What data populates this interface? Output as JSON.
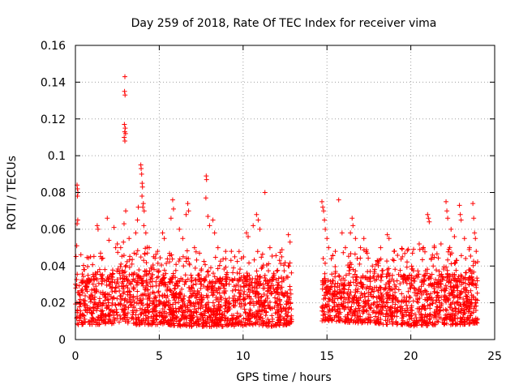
{
  "chart_data": {
    "type": "scatter",
    "title": "Day 259 of 2018, Rate Of TEC Index for receiver vima",
    "xlabel": "GPS time / hours",
    "ylabel": "ROTI / TECUs",
    "xlim": [
      0,
      25
    ],
    "ylim": [
      0,
      0.16
    ],
    "xticks": [
      0,
      5,
      10,
      15,
      20,
      25
    ],
    "yticks": [
      0,
      0.02,
      0.04,
      0.06,
      0.08,
      0.1,
      0.12,
      0.14,
      0.16
    ],
    "xtick_labels": [
      "0",
      "5",
      "10",
      "15",
      "20",
      "25"
    ],
    "ytick_labels": [
      "0",
      "0.02",
      "0.04",
      "0.06",
      "0.08",
      "0.1",
      "0.12",
      "0.14",
      "0.16"
    ],
    "grid": true,
    "marker": "+",
    "color": "#ff0000",
    "data_gap_hours": [
      12.9,
      14.7
    ],
    "series": [
      {
        "name": "vima",
        "points": [
          [
            0.1,
            0.084
          ],
          [
            0.12,
            0.082
          ],
          [
            0.15,
            0.08
          ],
          [
            0.12,
            0.078
          ],
          [
            0.14,
            0.065
          ],
          [
            0.1,
            0.063
          ],
          [
            0.08,
            0.051
          ],
          [
            0.5,
            0.038
          ],
          [
            0.9,
            0.045
          ],
          [
            1.3,
            0.062
          ],
          [
            1.35,
            0.06
          ],
          [
            1.5,
            0.047
          ],
          [
            1.9,
            0.066
          ],
          [
            2.0,
            0.054
          ],
          [
            2.3,
            0.061
          ],
          [
            2.4,
            0.05
          ],
          [
            2.5,
            0.052
          ],
          [
            2.7,
            0.05
          ],
          [
            2.95,
            0.143
          ],
          [
            2.93,
            0.135
          ],
          [
            2.96,
            0.133
          ],
          [
            2.92,
            0.117
          ],
          [
            2.97,
            0.115
          ],
          [
            2.94,
            0.113
          ],
          [
            2.99,
            0.112
          ],
          [
            2.91,
            0.11
          ],
          [
            2.95,
            0.108
          ],
          [
            3.0,
            0.07
          ],
          [
            2.9,
            0.063
          ],
          [
            3.2,
            0.055
          ],
          [
            3.5,
            0.047
          ],
          [
            3.6,
            0.058
          ],
          [
            3.7,
            0.065
          ],
          [
            3.75,
            0.072
          ],
          [
            3.9,
            0.095
          ],
          [
            3.92,
            0.093
          ],
          [
            3.95,
            0.09
          ],
          [
            3.98,
            0.085
          ],
          [
            4.0,
            0.083
          ],
          [
            3.97,
            0.078
          ],
          [
            4.05,
            0.074
          ],
          [
            4.02,
            0.072
          ],
          [
            4.1,
            0.07
          ],
          [
            4.08,
            0.062
          ],
          [
            4.2,
            0.058
          ],
          [
            4.4,
            0.05
          ],
          [
            4.9,
            0.048
          ],
          [
            5.2,
            0.058
          ],
          [
            5.3,
            0.055
          ],
          [
            5.7,
            0.066
          ],
          [
            5.8,
            0.076
          ],
          [
            5.85,
            0.071
          ],
          [
            6.2,
            0.06
          ],
          [
            6.4,
            0.055
          ],
          [
            6.6,
            0.068
          ],
          [
            6.7,
            0.074
          ],
          [
            6.75,
            0.07
          ],
          [
            7.1,
            0.05
          ],
          [
            7.4,
            0.047
          ],
          [
            7.8,
            0.089
          ],
          [
            7.82,
            0.087
          ],
          [
            7.78,
            0.077
          ],
          [
            7.9,
            0.067
          ],
          [
            8.0,
            0.062
          ],
          [
            8.2,
            0.065
          ],
          [
            8.3,
            0.058
          ],
          [
            8.5,
            0.05
          ],
          [
            9.3,
            0.048
          ],
          [
            9.5,
            0.045
          ],
          [
            10.2,
            0.058
          ],
          [
            10.3,
            0.056
          ],
          [
            10.6,
            0.062
          ],
          [
            10.8,
            0.068
          ],
          [
            10.9,
            0.065
          ],
          [
            11.0,
            0.06
          ],
          [
            11.3,
            0.08
          ],
          [
            11.6,
            0.05
          ],
          [
            12.3,
            0.045
          ],
          [
            12.7,
            0.057
          ],
          [
            12.8,
            0.053
          ],
          [
            14.7,
            0.075
          ],
          [
            14.75,
            0.072
          ],
          [
            14.8,
            0.07
          ],
          [
            14.85,
            0.065
          ],
          [
            14.9,
            0.06
          ],
          [
            15.0,
            0.055
          ],
          [
            15.1,
            0.05
          ],
          [
            15.5,
            0.048
          ],
          [
            15.7,
            0.076
          ],
          [
            15.9,
            0.058
          ],
          [
            16.1,
            0.05
          ],
          [
            16.4,
            0.058
          ],
          [
            16.5,
            0.066
          ],
          [
            16.55,
            0.062
          ],
          [
            16.7,
            0.055
          ],
          [
            17.0,
            0.05
          ],
          [
            17.2,
            0.055
          ],
          [
            17.4,
            0.047
          ],
          [
            18.0,
            0.043
          ],
          [
            18.2,
            0.05
          ],
          [
            18.6,
            0.057
          ],
          [
            18.7,
            0.055
          ],
          [
            19.0,
            0.048
          ],
          [
            19.5,
            0.045
          ],
          [
            20.1,
            0.047
          ],
          [
            20.5,
            0.052
          ],
          [
            21.0,
            0.068
          ],
          [
            21.05,
            0.066
          ],
          [
            21.1,
            0.064
          ],
          [
            21.4,
            0.05
          ],
          [
            21.8,
            0.052
          ],
          [
            22.1,
            0.075
          ],
          [
            22.15,
            0.07
          ],
          [
            22.2,
            0.066
          ],
          [
            22.4,
            0.06
          ],
          [
            22.6,
            0.056
          ],
          [
            22.9,
            0.073
          ],
          [
            22.95,
            0.068
          ],
          [
            23.0,
            0.065
          ],
          [
            23.2,
            0.055
          ],
          [
            23.5,
            0.05
          ],
          [
            23.7,
            0.074
          ],
          [
            23.75,
            0.066
          ],
          [
            23.8,
            0.058
          ],
          [
            23.85,
            0.055
          ],
          [
            23.9,
            0.048
          ]
        ],
        "density_band_by_hour": [
          [
            0.0,
            0.008,
            0.03
          ],
          [
            1.0,
            0.008,
            0.033
          ],
          [
            2.0,
            0.008,
            0.033
          ],
          [
            2.8,
            0.01,
            0.04
          ],
          [
            3.5,
            0.008,
            0.035
          ],
          [
            4.5,
            0.008,
            0.034
          ],
          [
            5.5,
            0.008,
            0.033
          ],
          [
            6.5,
            0.007,
            0.033
          ],
          [
            7.5,
            0.007,
            0.032
          ],
          [
            8.5,
            0.007,
            0.033
          ],
          [
            9.5,
            0.007,
            0.032
          ],
          [
            10.5,
            0.008,
            0.033
          ],
          [
            11.5,
            0.007,
            0.032
          ],
          [
            12.5,
            0.008,
            0.034
          ],
          [
            12.9,
            0.008,
            0.034
          ],
          [
            14.7,
            0.01,
            0.032
          ],
          [
            15.5,
            0.01,
            0.032
          ],
          [
            16.5,
            0.009,
            0.032
          ],
          [
            17.5,
            0.009,
            0.034
          ],
          [
            18.5,
            0.008,
            0.034
          ],
          [
            19.5,
            0.008,
            0.034
          ],
          [
            20.5,
            0.007,
            0.034
          ],
          [
            21.5,
            0.008,
            0.035
          ],
          [
            22.5,
            0.008,
            0.034
          ],
          [
            23.5,
            0.008,
            0.033
          ],
          [
            24.0,
            0.009,
            0.032
          ]
        ]
      }
    ]
  }
}
